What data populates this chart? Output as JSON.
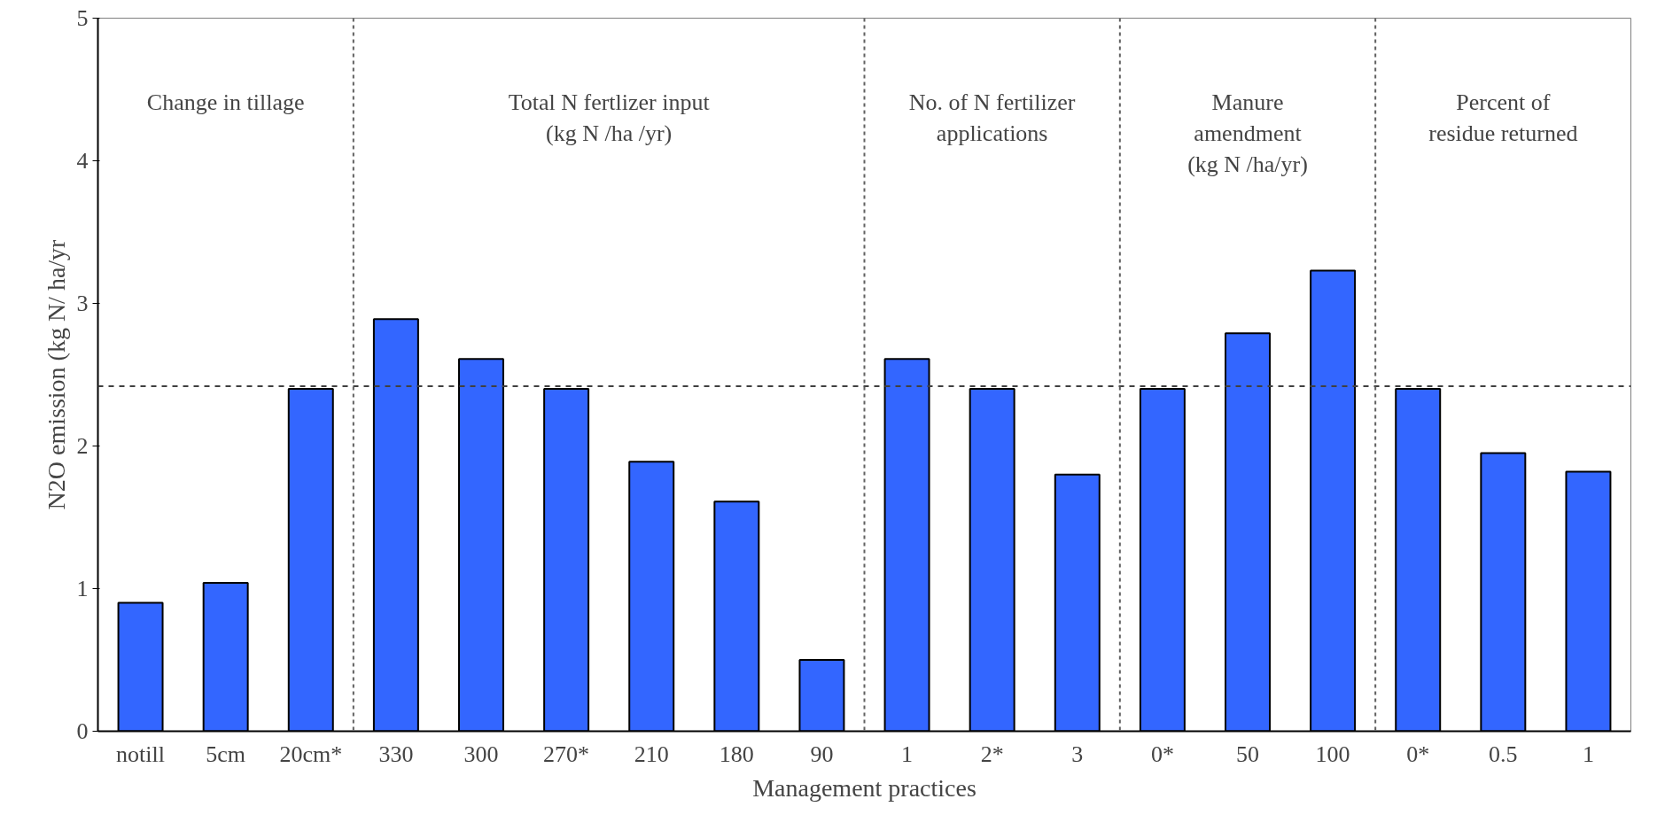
{
  "chart_data": {
    "type": "bar",
    "xlabel": "Management practices",
    "ylabel": "N2O emission (kg N/ ha/yr",
    "categories": [
      "notill",
      "5cm",
      "20cm*",
      "330",
      "300",
      "270*",
      "210",
      "180",
      "90",
      "1",
      "2*",
      "3",
      "0*",
      "50",
      "100",
      "0*",
      "0.5",
      "1"
    ],
    "values": [
      0.9,
      1.04,
      2.4,
      2.89,
      2.61,
      2.4,
      1.89,
      1.61,
      0.5,
      2.61,
      2.4,
      1.8,
      2.4,
      2.79,
      3.23,
      2.4,
      1.95,
      1.82
    ],
    "color": "#3366ff",
    "ylim": [
      0,
      5
    ],
    "yticks": [
      0,
      1,
      2,
      3,
      4,
      5
    ],
    "grid": false,
    "ref_lines": [
      {
        "axis": "y",
        "value": 2.42,
        "color": "#404040",
        "line_style": "dashed"
      }
    ],
    "annotations": [
      "Change in tillage",
      "Total N fertlizer input\n(kg N /ha /yr)",
      "No. of N fertilizer\napplications",
      "Manure\namendment\n(kg N /ha/yr)",
      "Percent of\nresidue returned"
    ]
  }
}
